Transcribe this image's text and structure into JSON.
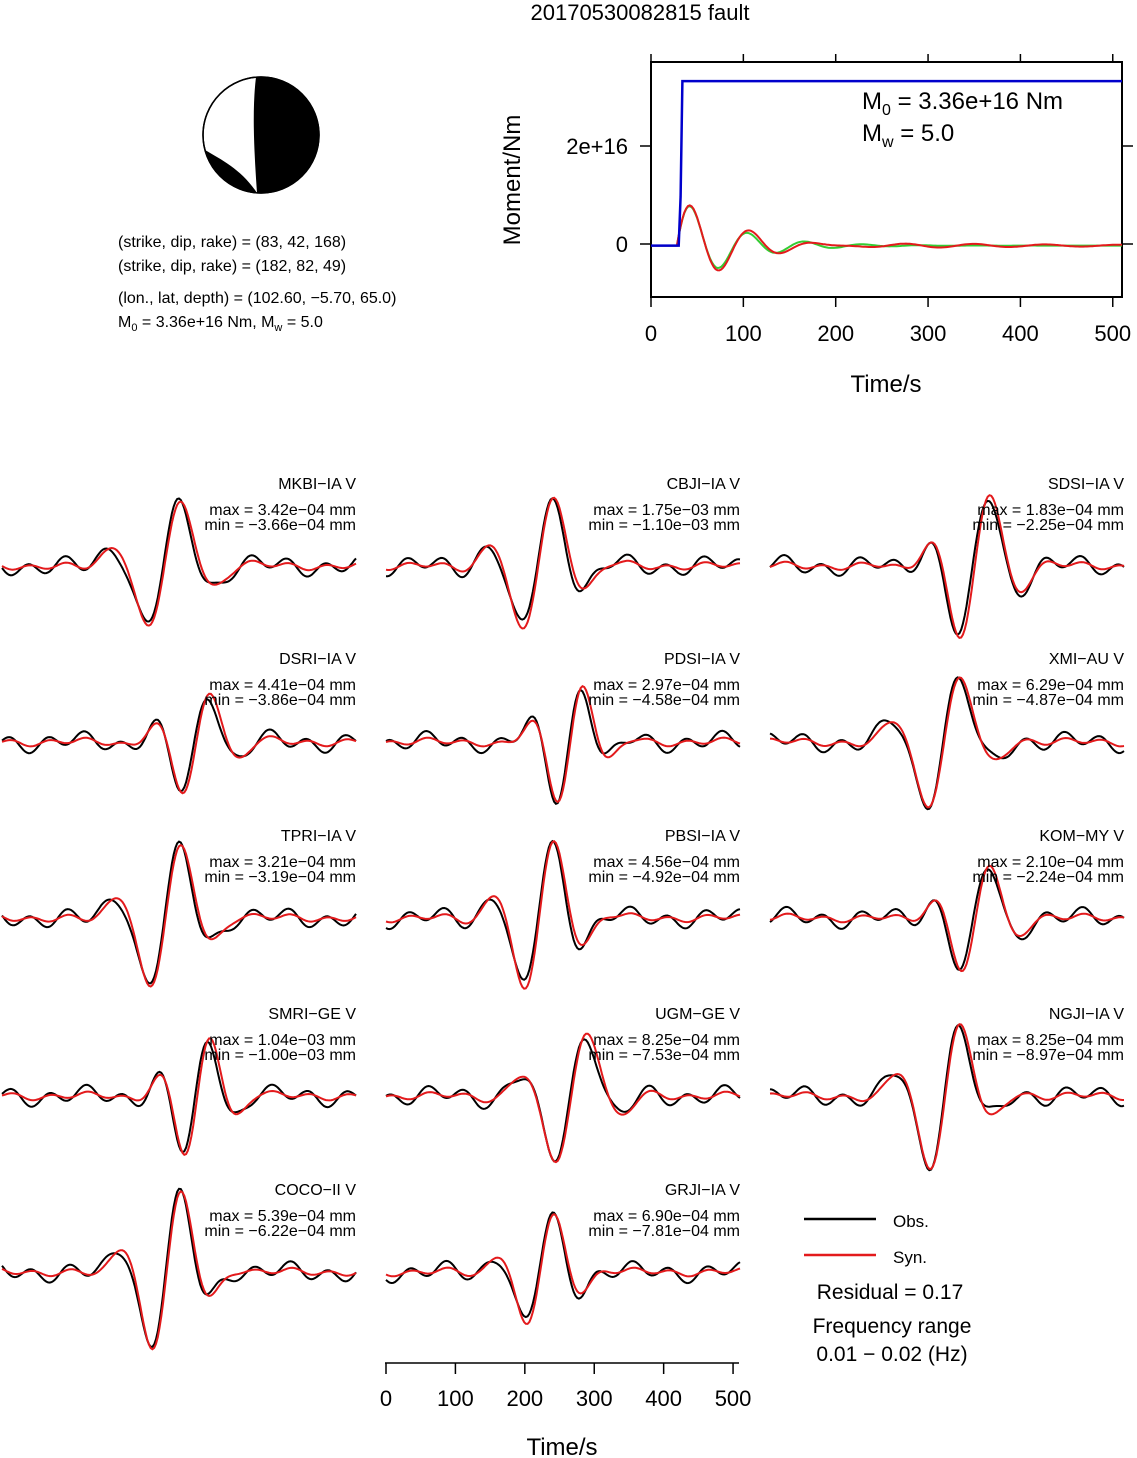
{
  "title": "20170530082815 fault",
  "mechanism": {
    "line1": "(strike, dip, rake) = (83, 42, 168)",
    "line2": "(strike, dip, rake) = (182, 82, 49)",
    "line3": "(lon., lat, depth) = (102.60, −5.70, 65.0)",
    "line4_prefix": "M",
    "line4_sub": "0",
    "line4_rest": " = 3.36e+16 Nm, M",
    "line4_sub2": "w",
    "line4_end": " = 5.0"
  },
  "moment_panel": {
    "ylabel": "Moment/Nm",
    "xlabel": "Time/s",
    "ytick_labels": [
      "0",
      "2e+16"
    ],
    "xtick_labels": [
      "0",
      "100",
      "200",
      "300",
      "400",
      "500"
    ],
    "m0_prefix": "M",
    "m0_sub": "0",
    "m0_rest": " = 3.36e+16 Nm",
    "mw_prefix": "M",
    "mw_sub": "w",
    "mw_rest": " = 5.0"
  },
  "legend": {
    "obs": "Obs.",
    "syn": "Syn.",
    "residual": "Residual = 0.17",
    "freq_label": "Frequency range",
    "freq_value": "0.01 − 0.02 (Hz)"
  },
  "wave_axis": {
    "xlabel": "Time/s",
    "xtick_labels": [
      "0",
      "100",
      "200",
      "300",
      "400",
      "500"
    ]
  },
  "colors": {
    "obs": "#000000",
    "syn": "#e31a1c",
    "moment": "#0000cc",
    "stf_green": "#33cc33",
    "stf_red": "#e31a1c"
  },
  "chart_data": [
    {
      "type": "line",
      "name": "moment-function",
      "xlabel": "Time/s",
      "ylabel": "Moment/Nm",
      "xlim": [
        0,
        510
      ],
      "ylim": [
        -1.05e+16,
        3.75e+16
      ],
      "series": [
        {
          "name": "moment",
          "x": [
            0,
            30,
            32,
            34,
            510
          ],
          "y": [
            0,
            0,
            1e+16,
            3.36e+16,
            3.36e+16
          ]
        }
      ]
    },
    {
      "type": "line",
      "name": "waveforms",
      "xlim": [
        0,
        510
      ],
      "stations": [
        {
          "name": "MKBI−IA V",
          "max": "max = 3.42e−04 mm",
          "min": "min = −3.66e−04 mm"
        },
        {
          "name": "CBJI−IA V",
          "max": "max = 1.75e−03 mm",
          "min": "min = −1.10e−03 mm"
        },
        {
          "name": "SDSI−IA V",
          "max": "max = 1.83e−04 mm",
          "min": "min = −2.25e−04 mm"
        },
        {
          "name": "DSRI−IA V",
          "max": "max = 4.41e−04 mm",
          "min": "min = −3.86e−04 mm"
        },
        {
          "name": "PDSI−IA V",
          "max": "max = 2.97e−04 mm",
          "min": "min = −4.58e−04 mm"
        },
        {
          "name": "XMI−AU V",
          "max": "max = 6.29e−04 mm",
          "min": "min = −4.87e−04 mm"
        },
        {
          "name": "TPRI−IA V",
          "max": "max = 3.21e−04 mm",
          "min": "min = −3.19e−04 mm"
        },
        {
          "name": "PBSI−IA V",
          "max": "max = 4.56e−04 mm",
          "min": "min = −4.92e−04 mm"
        },
        {
          "name": "KOM−MY V",
          "max": "max = 2.10e−04 mm",
          "min": "min = −2.24e−04 mm"
        },
        {
          "name": "SMRI−GE V",
          "max": "max = 1.04e−03 mm",
          "min": "min = −1.00e−03 mm"
        },
        {
          "name": "UGM−GE V",
          "max": "max = 8.25e−04 mm",
          "min": "min = −7.53e−04 mm"
        },
        {
          "name": "NGJI−IA V",
          "max": "max = 8.25e−04 mm",
          "min": "min = −8.97e−04 mm"
        },
        {
          "name": "COCO−II V",
          "max": "max = 5.39e−04 mm",
          "min": "min = −6.22e−04 mm"
        },
        {
          "name": "GRJI−IA V",
          "max": "max = 6.90e−04 mm",
          "min": "min = −7.81e−04 mm"
        }
      ]
    }
  ]
}
